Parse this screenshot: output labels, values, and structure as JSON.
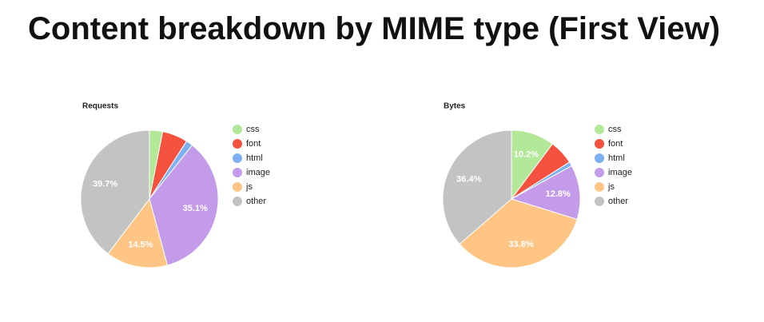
{
  "title": "Content breakdown by MIME type (First View)",
  "chart_data": [
    {
      "type": "pie",
      "title": "Requests",
      "categories": [
        "css",
        "font",
        "html",
        "image",
        "js",
        "other"
      ],
      "values": [
        3.1,
        6.0,
        1.6,
        35.1,
        14.5,
        39.7
      ],
      "value_labels": [
        null,
        null,
        null,
        "35.1%",
        "14.5%",
        "39.7%"
      ],
      "colors": [
        "#b3e898",
        "#f4523f",
        "#7cb0f0",
        "#c39be8",
        "#fec584",
        "#c3c3c3"
      ]
    },
    {
      "type": "pie",
      "title": "Bytes",
      "categories": [
        "css",
        "font",
        "html",
        "image",
        "js",
        "other"
      ],
      "values": [
        10.2,
        5.8,
        1.0,
        12.8,
        33.8,
        36.4
      ],
      "value_labels": [
        "10.2%",
        null,
        null,
        "12.8%",
        "33.8%",
        "36.4%"
      ],
      "colors": [
        "#b3e898",
        "#f4523f",
        "#7cb0f0",
        "#c39be8",
        "#fec584",
        "#c3c3c3"
      ]
    }
  ]
}
